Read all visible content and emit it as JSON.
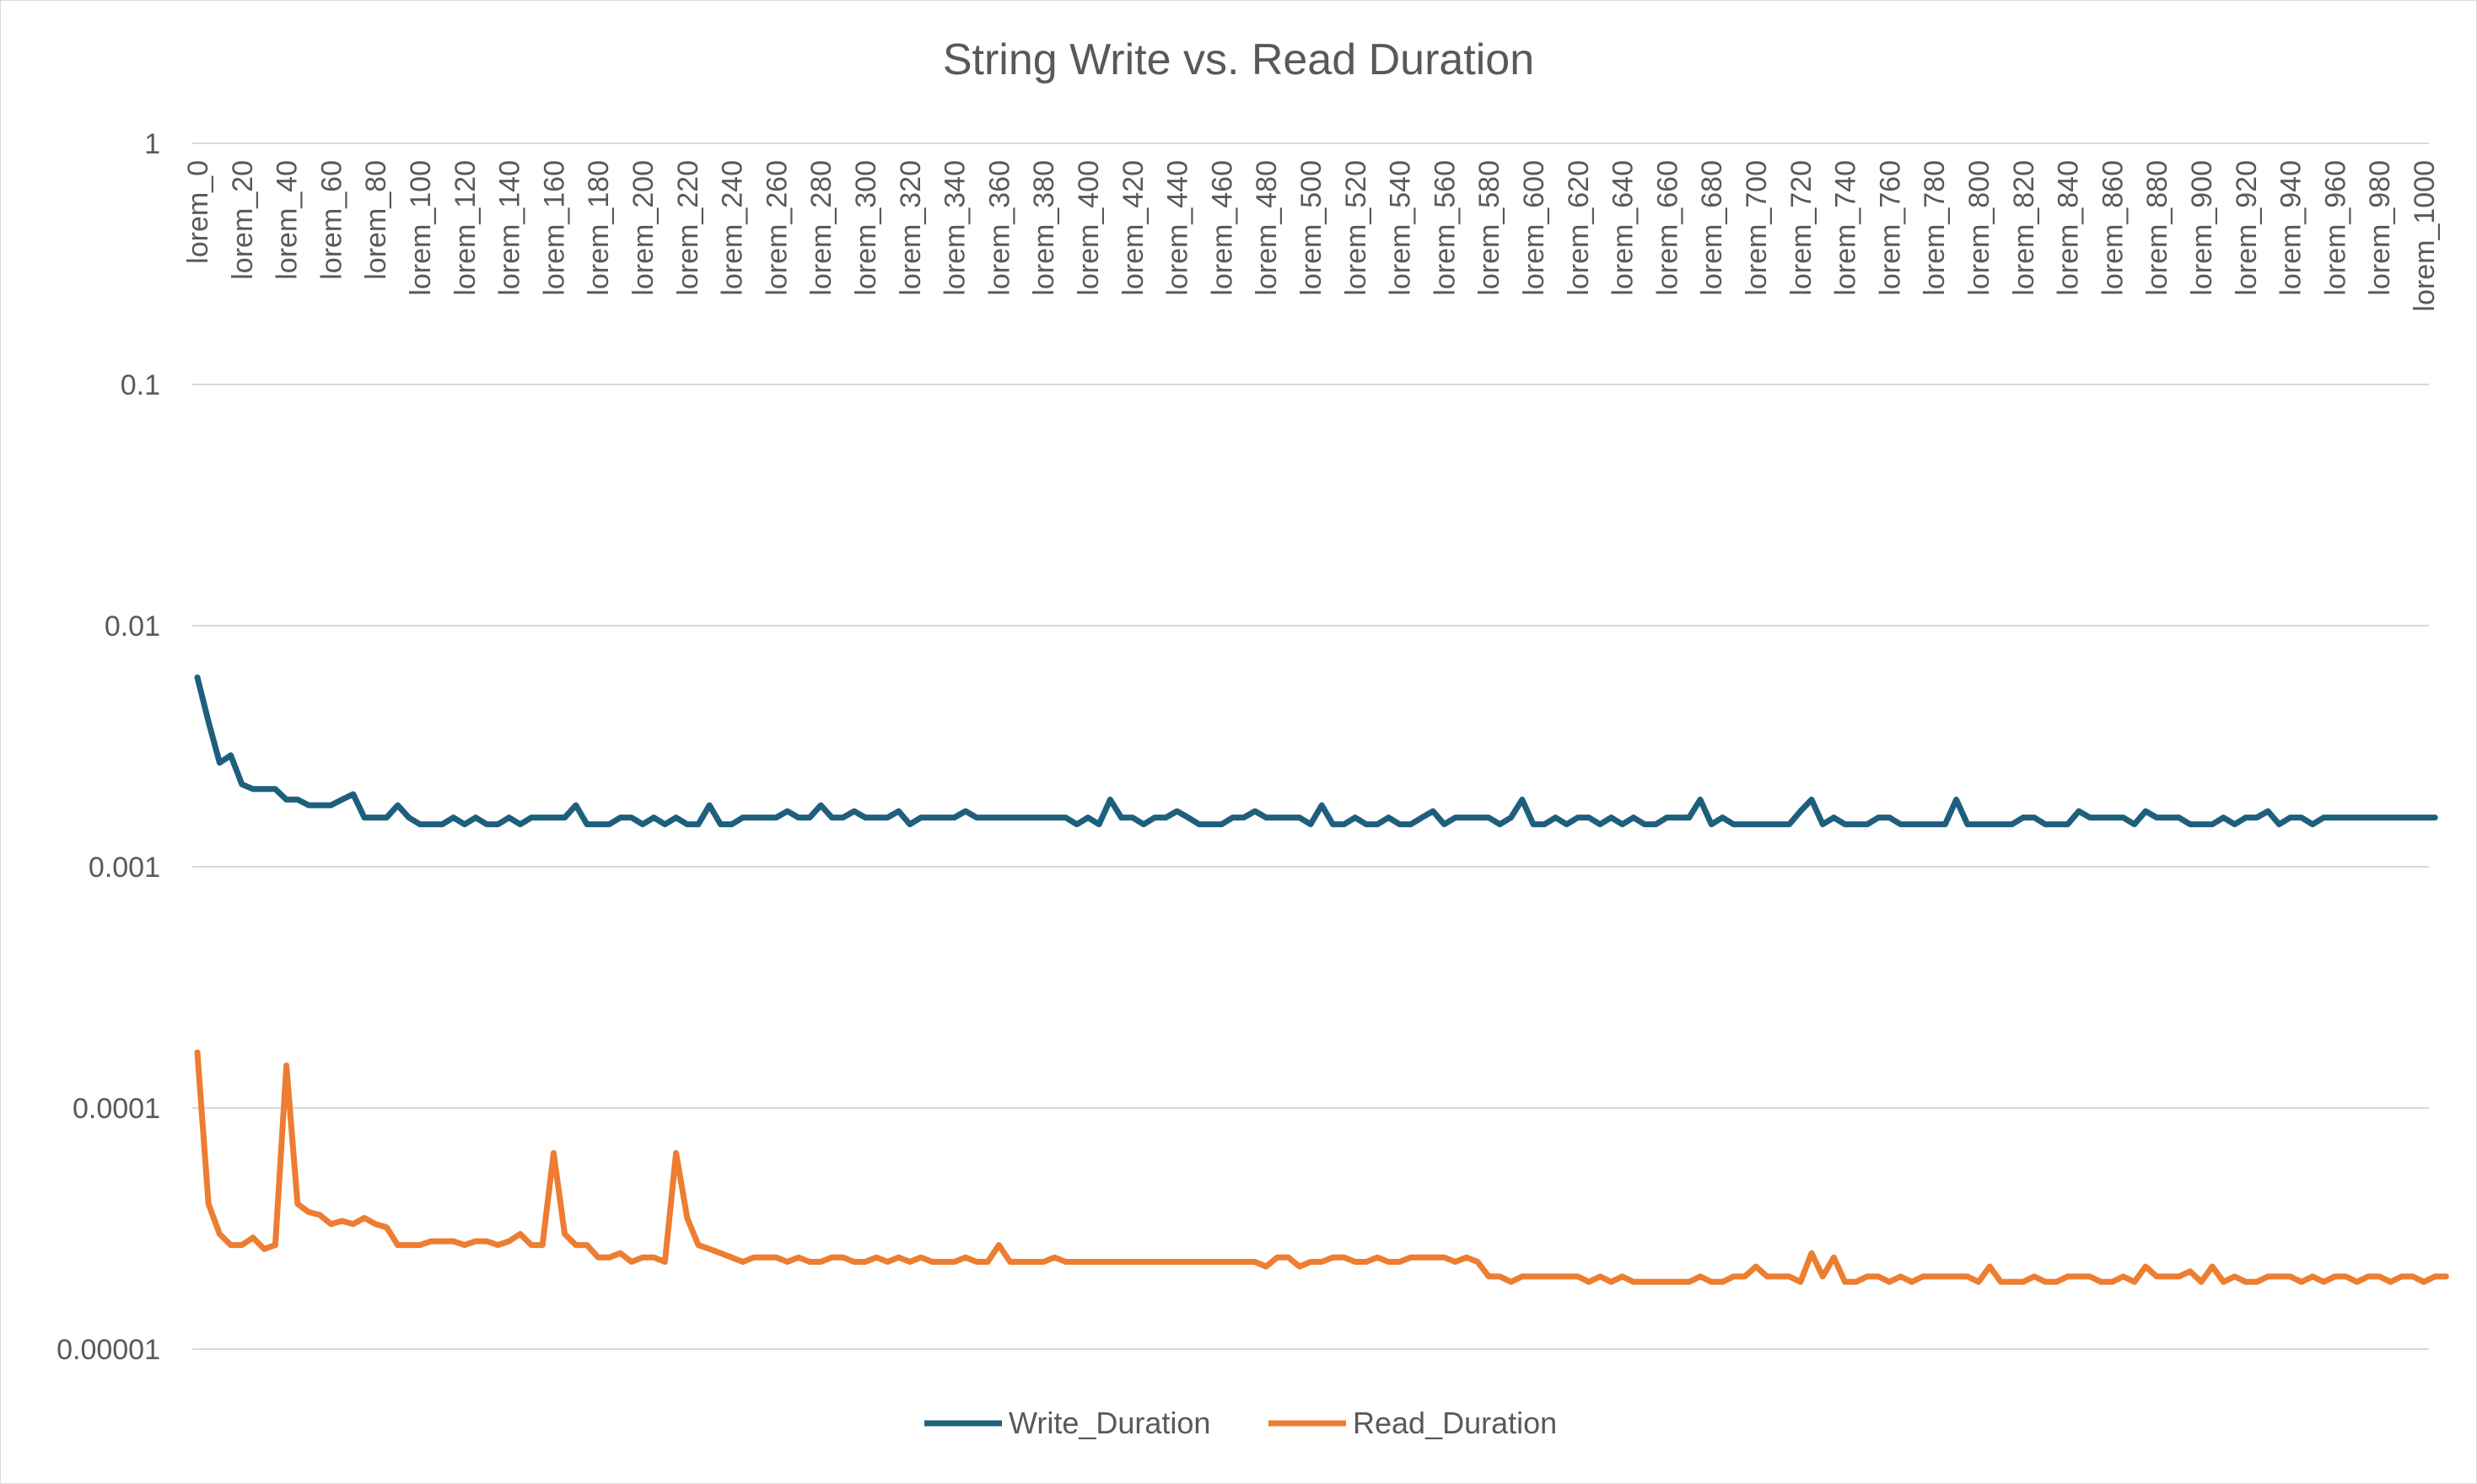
{
  "chart_data": {
    "type": "line",
    "title": "String Write vs. Read Duration",
    "xlabel": "",
    "ylabel": "",
    "y_scale": "log",
    "ylim": [
      1e-05,
      1
    ],
    "y_ticks": [
      "0.00001",
      "0.0001",
      "0.001",
      "0.01",
      "0.1",
      "1"
    ],
    "grid": true,
    "legend_position": "bottom",
    "x_tick_labels": [
      "lorem_0",
      "lorem_20",
      "lorem_40",
      "lorem_60",
      "lorem_80",
      "lorem_100",
      "lorem_120",
      "lorem_140",
      "lorem_160",
      "lorem_180",
      "lorem_200",
      "lorem_220",
      "lorem_240",
      "lorem_260",
      "lorem_280",
      "lorem_300",
      "lorem_320",
      "lorem_340",
      "lorem_360",
      "lorem_380",
      "lorem_400",
      "lorem_420",
      "lorem_440",
      "lorem_460",
      "lorem_480",
      "lorem_500",
      "lorem_520",
      "lorem_540",
      "lorem_560",
      "lorem_580",
      "lorem_600",
      "lorem_620",
      "lorem_640",
      "lorem_660",
      "lorem_680",
      "lorem_700",
      "lorem_720",
      "lorem_740",
      "lorem_760",
      "lorem_780",
      "lorem_800",
      "lorem_820",
      "lorem_840",
      "lorem_860",
      "lorem_880",
      "lorem_900",
      "lorem_920",
      "lorem_940",
      "lorem_960",
      "lorem_980",
      "lorem_1000"
    ],
    "x_count": 201,
    "series": [
      {
        "name": "Write_Duration",
        "color": "#1f5f7e",
        "values": [
          0.0061,
          0.004,
          0.0027,
          0.0029,
          0.0022,
          0.0021,
          0.0021,
          0.0021,
          0.0019,
          0.0019,
          0.0018,
          0.0018,
          0.0018,
          0.0019,
          0.002,
          0.0016,
          0.0016,
          0.0016,
          0.0018,
          0.0016,
          0.0015,
          0.0015,
          0.0015,
          0.0016,
          0.0015,
          0.0016,
          0.0015,
          0.0015,
          0.0016,
          0.0015,
          0.0016,
          0.0016,
          0.0016,
          0.0016,
          0.0018,
          0.0015,
          0.0015,
          0.0015,
          0.0016,
          0.0016,
          0.0015,
          0.0016,
          0.0015,
          0.0016,
          0.0015,
          0.0015,
          0.0018,
          0.0015,
          0.0015,
          0.0016,
          0.0016,
          0.0016,
          0.0016,
          0.0017,
          0.0016,
          0.0016,
          0.0018,
          0.0016,
          0.0016,
          0.0017,
          0.0016,
          0.0016,
          0.0016,
          0.0017,
          0.0015,
          0.0016,
          0.0016,
          0.0016,
          0.0016,
          0.0017,
          0.0016,
          0.0016,
          0.0016,
          0.0016,
          0.0016,
          0.0016,
          0.0016,
          0.0016,
          0.0016,
          0.0015,
          0.0016,
          0.0015,
          0.0019,
          0.0016,
          0.0016,
          0.0015,
          0.0016,
          0.0016,
          0.0017,
          0.0016,
          0.0015,
          0.0015,
          0.0015,
          0.0016,
          0.0016,
          0.0017,
          0.0016,
          0.0016,
          0.0016,
          0.0016,
          0.0015,
          0.0018,
          0.0015,
          0.0015,
          0.0016,
          0.0015,
          0.0015,
          0.0016,
          0.0015,
          0.0015,
          0.0016,
          0.0017,
          0.0015,
          0.0016,
          0.0016,
          0.0016,
          0.0016,
          0.0015,
          0.0016,
          0.0019,
          0.0015,
          0.0015,
          0.0016,
          0.0015,
          0.0016,
          0.0016,
          0.0015,
          0.0016,
          0.0015,
          0.0016,
          0.0015,
          0.0015,
          0.0016,
          0.0016,
          0.0016,
          0.0019,
          0.0015,
          0.0016,
          0.0015,
          0.0015,
          0.0015,
          0.0015,
          0.0015,
          0.0015,
          0.0017,
          0.0019,
          0.0015,
          0.0016,
          0.0015,
          0.0015,
          0.0015,
          0.0016,
          0.0016,
          0.0015,
          0.0015,
          0.0015,
          0.0015,
          0.0015,
          0.0019,
          0.0015,
          0.0015,
          0.0015,
          0.0015,
          0.0015,
          0.0016,
          0.0016,
          0.0015,
          0.0015,
          0.0015,
          0.0017,
          0.0016,
          0.0016,
          0.0016,
          0.0016,
          0.0015,
          0.0017,
          0.0016,
          0.0016,
          0.0016,
          0.0015,
          0.0015,
          0.0015,
          0.0016,
          0.0015,
          0.0016,
          0.0016,
          0.0017,
          0.0015,
          0.0016,
          0.0016,
          0.0015,
          0.0016,
          0.0016,
          0.0016,
          0.0016,
          0.0016,
          0.0016,
          0.0016,
          0.0016,
          0.0016,
          0.0016,
          0.0016
        ]
      },
      {
        "name": "Read_Duration",
        "color": "#ed7d31",
        "values": [
          0.00017,
          4e-05,
          3e-05,
          2.7e-05,
          2.7e-05,
          2.9e-05,
          2.6e-05,
          2.7e-05,
          0.00015,
          4e-05,
          3.7e-05,
          3.6e-05,
          3.3e-05,
          3.4e-05,
          3.3e-05,
          3.5e-05,
          3.3e-05,
          3.2e-05,
          2.7e-05,
          2.7e-05,
          2.7e-05,
          2.8e-05,
          2.8e-05,
          2.8e-05,
          2.7e-05,
          2.8e-05,
          2.8e-05,
          2.7e-05,
          2.8e-05,
          3e-05,
          2.7e-05,
          2.7e-05,
          6.5e-05,
          3e-05,
          2.7e-05,
          2.7e-05,
          2.4e-05,
          2.4e-05,
          2.5e-05,
          2.3e-05,
          2.4e-05,
          2.4e-05,
          2.3e-05,
          6.5e-05,
          3.5e-05,
          2.7e-05,
          2.6e-05,
          2.5e-05,
          2.4e-05,
          2.3e-05,
          2.4e-05,
          2.4e-05,
          2.4e-05,
          2.3e-05,
          2.4e-05,
          2.3e-05,
          2.3e-05,
          2.4e-05,
          2.4e-05,
          2.3e-05,
          2.3e-05,
          2.4e-05,
          2.3e-05,
          2.4e-05,
          2.3e-05,
          2.4e-05,
          2.3e-05,
          2.3e-05,
          2.3e-05,
          2.4e-05,
          2.3e-05,
          2.3e-05,
          2.7e-05,
          2.3e-05,
          2.3e-05,
          2.3e-05,
          2.3e-05,
          2.4e-05,
          2.3e-05,
          2.3e-05,
          2.3e-05,
          2.3e-05,
          2.3e-05,
          2.3e-05,
          2.3e-05,
          2.3e-05,
          2.3e-05,
          2.3e-05,
          2.3e-05,
          2.3e-05,
          2.3e-05,
          2.3e-05,
          2.3e-05,
          2.3e-05,
          2.3e-05,
          2.3e-05,
          2.2e-05,
          2.4e-05,
          2.4e-05,
          2.2e-05,
          2.3e-05,
          2.3e-05,
          2.4e-05,
          2.4e-05,
          2.3e-05,
          2.3e-05,
          2.4e-05,
          2.3e-05,
          2.3e-05,
          2.4e-05,
          2.4e-05,
          2.4e-05,
          2.4e-05,
          2.3e-05,
          2.4e-05,
          2.3e-05,
          2e-05,
          2e-05,
          1.9e-05,
          2e-05,
          2e-05,
          2e-05,
          2e-05,
          2e-05,
          2e-05,
          1.9e-05,
          2e-05,
          1.9e-05,
          2e-05,
          1.9e-05,
          1.9e-05,
          1.9e-05,
          1.9e-05,
          1.9e-05,
          1.9e-05,
          2e-05,
          1.9e-05,
          1.9e-05,
          2e-05,
          2e-05,
          2.2e-05,
          2e-05,
          2e-05,
          2e-05,
          1.9e-05,
          2.5e-05,
          2e-05,
          2.4e-05,
          1.9e-05,
          1.9e-05,
          2e-05,
          2e-05,
          1.9e-05,
          2e-05,
          1.9e-05,
          2e-05,
          2e-05,
          2e-05,
          2e-05,
          2e-05,
          1.9e-05,
          2.2e-05,
          1.9e-05,
          1.9e-05,
          1.9e-05,
          2e-05,
          1.9e-05,
          1.9e-05,
          2e-05,
          2e-05,
          2e-05,
          1.9e-05,
          1.9e-05,
          2e-05,
          1.9e-05,
          2.2e-05,
          2e-05,
          2e-05,
          2e-05,
          2.1e-05,
          1.9e-05,
          2.2e-05,
          1.9e-05,
          2e-05,
          1.9e-05,
          1.9e-05,
          2e-05,
          2e-05,
          2e-05,
          1.9e-05,
          2e-05,
          1.9e-05,
          2e-05,
          2e-05,
          1.9e-05,
          2e-05,
          2e-05,
          1.9e-05,
          2e-05,
          2e-05,
          1.9e-05,
          2e-05,
          2e-05
        ]
      }
    ]
  }
}
